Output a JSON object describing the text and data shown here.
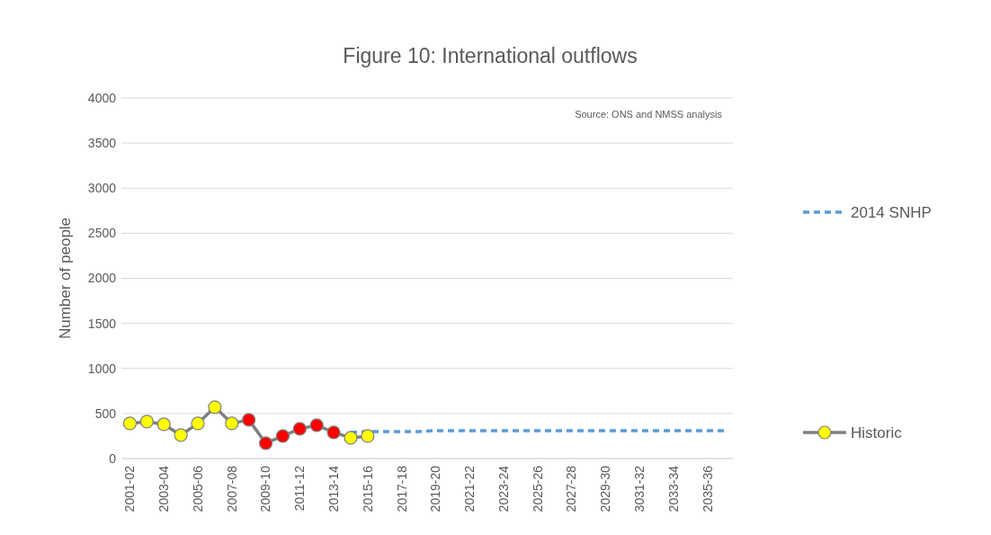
{
  "chart_data": {
    "type": "line",
    "title": "Figure 10: International outflows",
    "ylabel": "Number of people",
    "annotations": [
      "Source: ONS and NMSS analysis"
    ],
    "categories": [
      "2001-02",
      null,
      "2003-04",
      null,
      "2005-06",
      null,
      "2007-08",
      null,
      "2009-10",
      null,
      "2011-12",
      null,
      "2013-14",
      null,
      "2015-16",
      null,
      "2017-18",
      null,
      "2019-20",
      null,
      "2021-22",
      null,
      "2023-24",
      null,
      "2025-26",
      null,
      "2027-28",
      null,
      "2029-30",
      null,
      "3031-32",
      null,
      "2033-34",
      null,
      "2035-36",
      null
    ],
    "series": [
      {
        "name": "2014 SNHP",
        "color": "#5b9bd5",
        "line_style": "dashed",
        "marker": "none",
        "values": [
          null,
          null,
          null,
          null,
          null,
          null,
          null,
          null,
          null,
          null,
          null,
          null,
          null,
          290,
          300,
          300,
          300,
          300,
          310,
          310,
          310,
          310,
          310,
          310,
          310,
          310,
          310,
          310,
          310,
          310,
          310,
          310,
          310,
          310,
          310,
          310
        ]
      },
      {
        "name": "Historic",
        "color": "#7f7f7f",
        "line_style": "solid",
        "marker": "circle",
        "colors": [
          "#ffff00",
          "#ffff00",
          "#ffff00",
          "#ffff00",
          "#ffff00",
          "#ffff00",
          "#ffff00",
          "#ff0000",
          "#ff0000",
          "#ff0000",
          "#ff0000",
          "#ff0000",
          "#ff0000",
          "#ffff00",
          "#ffff00",
          null,
          null,
          null,
          null,
          null,
          null,
          null,
          null,
          null,
          null,
          null,
          null,
          null,
          null,
          null,
          null,
          null,
          null,
          null,
          null,
          null
        ],
        "values": [
          390,
          410,
          380,
          260,
          390,
          570,
          390,
          430,
          170,
          250,
          330,
          370,
          290,
          230,
          250,
          null,
          null,
          null,
          null,
          null,
          null,
          null,
          null,
          null,
          null,
          null,
          null,
          null,
          null,
          null,
          null,
          null,
          null,
          null,
          null,
          null
        ]
      }
    ],
    "ylim": [
      0,
      4000
    ],
    "yticks": [
      0,
      500,
      1000,
      1500,
      2000,
      2500,
      3000,
      3500,
      4000
    ],
    "grid": "y",
    "legend": "right"
  }
}
